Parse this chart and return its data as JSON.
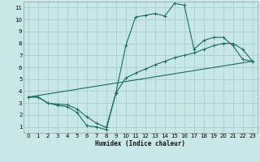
{
  "xlabel": "Humidex (Indice chaleur)",
  "xlim": [
    -0.5,
    23.5
  ],
  "ylim": [
    0.5,
    11.5
  ],
  "xticks": [
    0,
    1,
    2,
    3,
    4,
    5,
    6,
    7,
    8,
    9,
    10,
    11,
    12,
    13,
    14,
    15,
    16,
    17,
    18,
    19,
    20,
    21,
    22,
    23
  ],
  "yticks": [
    1,
    2,
    3,
    4,
    5,
    6,
    7,
    8,
    9,
    10,
    11
  ],
  "background_color": "#c8e8e8",
  "grid_color": "#a8cccc",
  "line_color": "#1a6b5a",
  "line1_x": [
    0,
    1,
    2,
    3,
    4,
    5,
    6,
    7,
    8,
    9,
    10,
    11,
    12,
    13,
    14,
    15,
    16,
    17,
    18,
    19,
    20,
    21,
    22,
    23
  ],
  "line1_y": [
    3.5,
    3.5,
    3.0,
    2.8,
    2.7,
    2.2,
    1.1,
    1.0,
    0.75,
    3.9,
    7.8,
    10.2,
    10.35,
    10.5,
    10.3,
    11.35,
    11.2,
    7.5,
    8.25,
    8.5,
    8.5,
    7.8,
    6.65,
    6.5
  ],
  "line2_x": [
    0,
    1,
    2,
    3,
    4,
    5,
    6,
    7,
    8,
    9,
    10,
    11,
    12,
    13,
    14,
    15,
    16,
    17,
    18,
    19,
    20,
    21,
    22,
    23
  ],
  "line2_y": [
    3.5,
    3.5,
    3.0,
    2.9,
    2.85,
    2.5,
    1.85,
    1.3,
    0.95,
    3.85,
    5.1,
    5.5,
    5.85,
    6.2,
    6.5,
    6.8,
    7.0,
    7.2,
    7.5,
    7.8,
    8.0,
    8.0,
    7.5,
    6.5
  ],
  "line3_x": [
    0,
    23
  ],
  "line3_y": [
    3.5,
    6.5
  ]
}
